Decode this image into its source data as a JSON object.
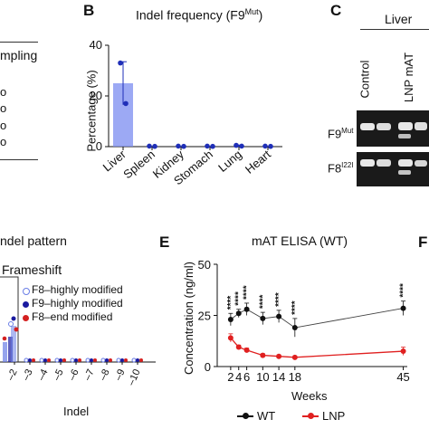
{
  "colors": {
    "bar": "#7b8cf0",
    "bar_point": "#1f2fb8",
    "wt": "#111111",
    "lnp": "#e02020",
    "f8_highly": "#6a7ee6",
    "f9_highly": "#1a1aa0",
    "f8_end": "#d42020",
    "gel_bg": "#1a1a1a",
    "gel_band": "#e8e8e8"
  },
  "panel_a": {
    "partial_label": "mpling",
    "circles": [
      "o",
      "o",
      "o",
      "o"
    ]
  },
  "panel_b": {
    "letter": "B",
    "chart_data": {
      "type": "bar",
      "title": "Indel frequency (F9",
      "title_sup": "Mut",
      "title_end": ")",
      "ylabel": "Percentage (%)",
      "ylim": [
        0,
        40
      ],
      "yticks": [
        "0",
        "20",
        "40"
      ],
      "categories": [
        "Liver",
        "Spleen",
        "Kidney",
        "Stomach",
        "Lung",
        "Heart"
      ],
      "values": [
        25,
        0,
        0,
        0,
        0.3,
        0
      ],
      "points": [
        [
          33,
          17
        ],
        [
          0.2,
          0.1
        ],
        [
          0.2,
          0.1
        ],
        [
          0.2,
          0.1
        ],
        [
          0.5,
          0.2
        ],
        [
          0.2,
          0.1
        ]
      ],
      "errors": [
        8.5,
        0,
        0,
        0,
        0.3,
        0
      ]
    }
  },
  "panel_c": {
    "letter": "C",
    "tissue": "Liver",
    "lanes": [
      "Control",
      "LNP mAT"
    ],
    "row1_label": "F9",
    "row1_sup": "Mut",
    "row2_label": "F8",
    "row2_sup": "I22I"
  },
  "panel_d": {
    "partial_title": "ndel pattern",
    "frameshift_label": "Frameshift",
    "legend": [
      "F8–highly modified",
      "F9–highly modified",
      "F8–end modified"
    ],
    "xlabel": "Indel",
    "tick_labels": [
      "–2",
      "–3",
      "–4",
      "–5",
      "–6",
      "–7",
      "–8",
      "–9",
      "–10"
    ]
  },
  "panel_e": {
    "letter": "E",
    "chart_data": {
      "type": "line",
      "title": "mAT ELISA (WT)",
      "xlabel": "Weeks",
      "ylabel": "Concentration (ng/ml)",
      "ylim": [
        0,
        50
      ],
      "yticks": [
        "0",
        "25",
        "50"
      ],
      "x": [
        2,
        4,
        6,
        10,
        14,
        18,
        45
      ],
      "xtick_labels": [
        "2",
        "4",
        "6",
        "10",
        "14",
        "18",
        "45"
      ],
      "series": [
        {
          "name": "WT",
          "values": [
            23,
            26,
            28,
            23.5,
            24.5,
            19,
            28.5
          ],
          "errors": [
            3,
            2,
            3,
            3,
            3,
            4.5,
            3.5
          ]
        },
        {
          "name": "LNP",
          "values": [
            14,
            9.5,
            8,
            5.5,
            5,
            4.5,
            7.5
          ],
          "errors": [
            2,
            1,
            1,
            0.8,
            0.5,
            0.5,
            2
          ]
        }
      ],
      "significance": [
        "****",
        "****",
        "****",
        "****",
        "****",
        "****",
        "****"
      ]
    }
  },
  "panel_f": {
    "letter": "F"
  }
}
